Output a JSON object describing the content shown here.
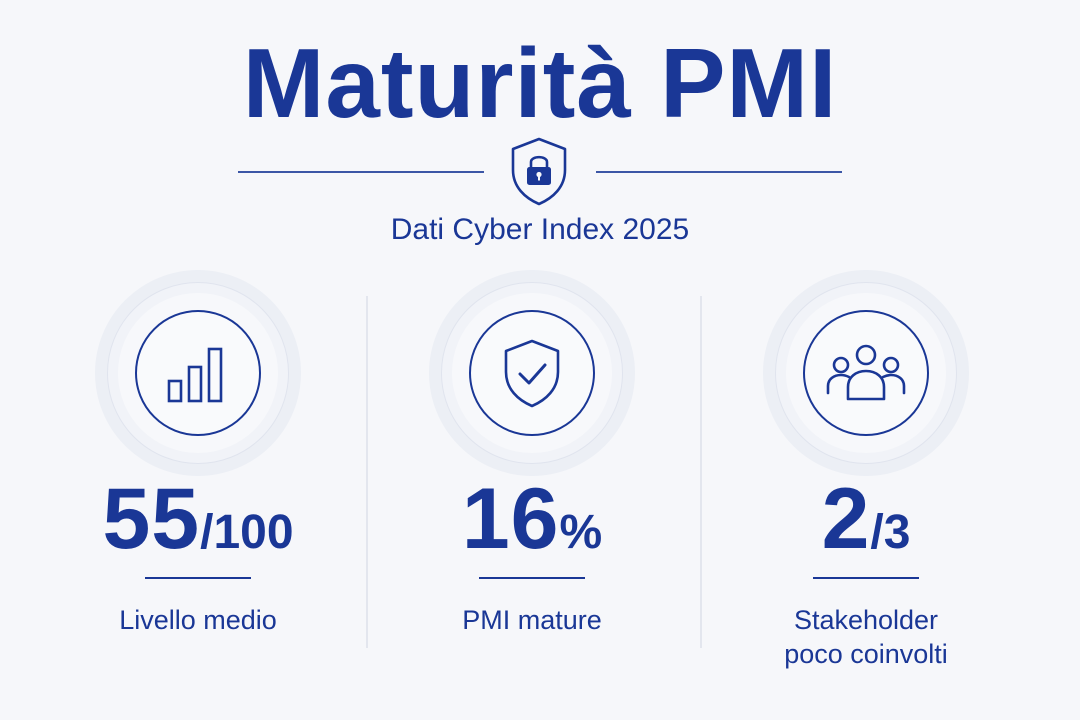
{
  "header": {
    "title": "Maturità PMI",
    "subtitle": "Dati Cyber Index 2025",
    "badge_icon": "shield-lock-icon"
  },
  "stats": [
    {
      "icon": "bar-chart-icon",
      "value": "55",
      "suffix": "/100",
      "label": "Livello medio"
    },
    {
      "icon": "shield-check-icon",
      "value": "16",
      "suffix": "%",
      "label": "PMI mature"
    },
    {
      "icon": "people-group-icon",
      "value": "2",
      "suffix": "/3",
      "label": "Stakeholder poco coinvolti"
    }
  ],
  "colors": {
    "accent": "#1a3796",
    "background": "#f6f7fa",
    "divider": "#e3e6ee"
  }
}
